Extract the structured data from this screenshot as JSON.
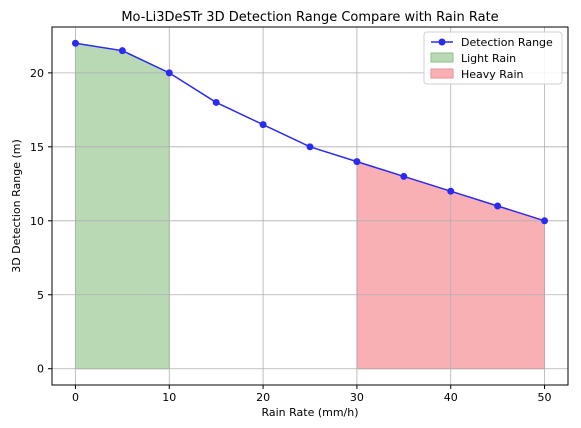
{
  "chart_data": {
    "type": "line",
    "title": "Mo-Li3DeSTr 3D Detection Range Compare with Rain Rate",
    "xlabel": "Rain Rate (mm/h)",
    "ylabel": "3D Detection Range (m)",
    "xlim": [
      -2.5,
      52.5
    ],
    "ylim": [
      -1.1,
      23.1
    ],
    "xticks": [
      0,
      10,
      20,
      30,
      40,
      50
    ],
    "yticks": [
      0,
      5,
      10,
      15,
      20
    ],
    "grid": true,
    "legend_position": "top-right",
    "x": [
      0,
      5,
      10,
      15,
      20,
      25,
      30,
      35,
      40,
      45,
      50
    ],
    "series": [
      {
        "name": "Detection Range",
        "values": [
          22,
          21.5,
          20,
          18,
          16.5,
          15,
          14,
          13,
          12,
          11,
          10
        ],
        "color": "#2b2bf0",
        "marker": "circle"
      }
    ],
    "regions": [
      {
        "name": "Light Rain",
        "x_range": [
          0,
          10
        ],
        "color": "#b8d9b4",
        "edge": "#8fbf8a"
      },
      {
        "name": "Heavy Rain",
        "x_range": [
          30,
          50
        ],
        "color": "#f8b0b4",
        "edge": "#e88f94"
      }
    ]
  }
}
